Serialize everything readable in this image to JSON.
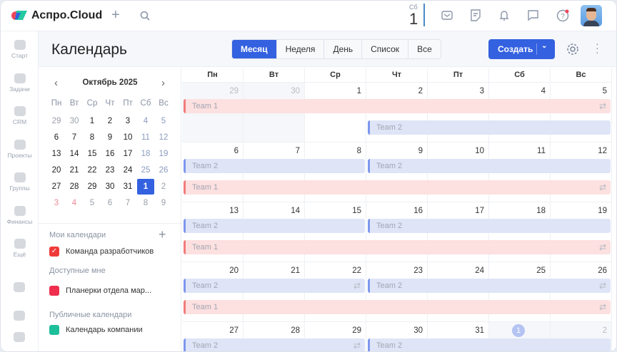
{
  "app": {
    "brand": "Аспро.Cloud",
    "date_weekday": "Сб",
    "date_day": "1",
    "title": "Календарь"
  },
  "nav": [
    {
      "label": "Старт"
    },
    {
      "label": "Задачи"
    },
    {
      "label": "CRM"
    },
    {
      "label": "Проекты"
    },
    {
      "label": "Группы"
    },
    {
      "label": "Финансы"
    },
    {
      "label": "Ещё"
    }
  ],
  "views": [
    "Месяц",
    "Неделя",
    "День",
    "Список",
    "Все"
  ],
  "active_view": "Месяц",
  "create_label": "Создать",
  "mini": {
    "month": "Октябрь 2025",
    "weekdays": [
      "Пн",
      "Вт",
      "Ср",
      "Чт",
      "Пт",
      "Сб",
      "Вс"
    ],
    "weeks": [
      [
        "29",
        "30",
        "1",
        "2",
        "3",
        "4",
        "5"
      ],
      [
        "6",
        "7",
        "8",
        "9",
        "10",
        "11",
        "12"
      ],
      [
        "13",
        "14",
        "15",
        "16",
        "17",
        "18",
        "19"
      ],
      [
        "20",
        "21",
        "22",
        "23",
        "24",
        "25",
        "26"
      ],
      [
        "27",
        "28",
        "29",
        "30",
        "31",
        "1",
        "2"
      ],
      [
        "3",
        "4",
        "5",
        "6",
        "7",
        "8",
        "9"
      ]
    ],
    "selected": "1"
  },
  "calendars": {
    "my_title": "Мои календари",
    "my": [
      {
        "label": "Команда разработчиков",
        "color": "#f03a3a",
        "checked": true
      }
    ],
    "avail_title": "Доступные мне",
    "avail": [
      {
        "label": "Планерки отдела мар...",
        "color": "#ef2f4d"
      }
    ],
    "public_title": "Публичные календари",
    "public": [
      {
        "label": "Календарь компании",
        "color": "#1dbf9a"
      }
    ]
  },
  "month": {
    "weekdays": [
      "Пн",
      "Вт",
      "Ср",
      "Чт",
      "Пт",
      "Сб",
      "Вс"
    ],
    "weeks": [
      {
        "days": [
          "29",
          "30",
          "1",
          "2",
          "3",
          "4",
          "5"
        ],
        "events": [
          {
            "label": "Team 1",
            "team": 1,
            "start": 0,
            "span": 7,
            "row": 0,
            "repeat": true
          },
          {
            "label": "Team 2",
            "team": 2,
            "start": 3,
            "span": 4,
            "row": 1,
            "repeat": false
          }
        ]
      },
      {
        "days": [
          "6",
          "7",
          "8",
          "9",
          "10",
          "11",
          "12"
        ],
        "events": [
          {
            "label": "Team 2",
            "team": 2,
            "start": 0,
            "span": 3,
            "row": 0,
            "repeat": false
          },
          {
            "label": "Team 2",
            "team": 2,
            "start": 3,
            "span": 4,
            "row": 0,
            "repeat": false
          },
          {
            "label": "Team 1",
            "team": 1,
            "start": 0,
            "span": 7,
            "row": 1,
            "repeat": true
          }
        ]
      },
      {
        "days": [
          "13",
          "14",
          "15",
          "16",
          "17",
          "18",
          "19"
        ],
        "events": [
          {
            "label": "Team 2",
            "team": 2,
            "start": 0,
            "span": 3,
            "row": 0,
            "repeat": false
          },
          {
            "label": "Team 2",
            "team": 2,
            "start": 3,
            "span": 4,
            "row": 0,
            "repeat": false
          },
          {
            "label": "Team 1",
            "team": 1,
            "start": 0,
            "span": 7,
            "row": 1,
            "repeat": true
          }
        ]
      },
      {
        "days": [
          "20",
          "21",
          "22",
          "23",
          "24",
          "25",
          "26"
        ],
        "events": [
          {
            "label": "Team 2",
            "team": 2,
            "start": 0,
            "span": 3,
            "row": 0,
            "repeat": true
          },
          {
            "label": "Team 2",
            "team": 2,
            "start": 3,
            "span": 4,
            "row": 0,
            "repeat": true
          },
          {
            "label": "Team 1",
            "team": 1,
            "start": 0,
            "span": 7,
            "row": 1,
            "repeat": true
          }
        ]
      },
      {
        "days": [
          "27",
          "28",
          "29",
          "30",
          "31",
          "1",
          "2"
        ],
        "events": [
          {
            "label": "Team 2",
            "team": 2,
            "start": 0,
            "span": 3,
            "row": 0,
            "repeat": true
          },
          {
            "label": "Team 2",
            "team": 2,
            "start": 3,
            "span": 4,
            "row": 0,
            "repeat": false
          }
        ]
      }
    ]
  },
  "colors": {
    "accent": "#3461e0",
    "team1_bg": "#fde0e0",
    "team1_bar": "#f27c7c",
    "team2_bg": "#dfe5f7",
    "team2_bar": "#7d97ee"
  }
}
